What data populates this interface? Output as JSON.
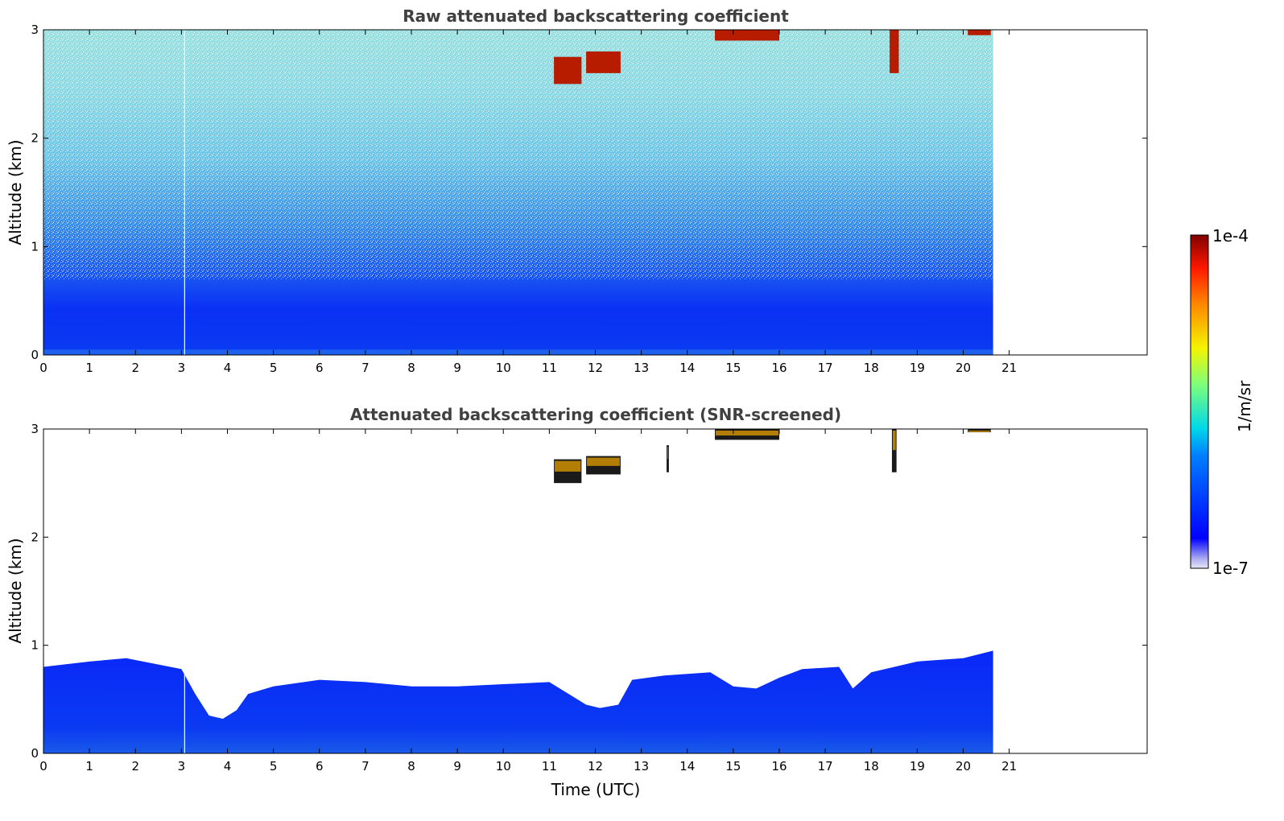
{
  "chart_data": [
    {
      "type": "heatmap",
      "title": "Raw attenuated backscattering coefficient",
      "xlabel": "",
      "ylabel": "Altitude (km)",
      "xlim": [
        0,
        24
      ],
      "ylim": [
        0,
        3
      ],
      "x_ticks": [
        0,
        1,
        2,
        3,
        4,
        5,
        6,
        7,
        8,
        9,
        10,
        11,
        12,
        13,
        14,
        15,
        16,
        17,
        18,
        19,
        20,
        21
      ],
      "x_tick_labels": [
        "0",
        "1",
        "2",
        "3",
        "4",
        "5",
        "6",
        "7",
        "8",
        "9",
        "10",
        "11",
        "12",
        "13",
        "14",
        "15",
        "16",
        "17",
        "18",
        "19",
        "20",
        "21"
      ],
      "y_ticks": [
        0,
        1,
        2,
        3
      ],
      "y_tick_labels": [
        "0",
        "1",
        "2",
        "3"
      ],
      "data_end_time": 20.65,
      "boundary_layer_top_km": 0.7,
      "clouds": [
        {
          "t_start": 11.1,
          "t_end": 11.7,
          "alt_low": 2.5,
          "alt_high": 2.75
        },
        {
          "t_start": 11.8,
          "t_end": 12.55,
          "alt_low": 2.6,
          "alt_high": 2.8
        },
        {
          "t_start": 14.6,
          "t_end": 16.0,
          "alt_low": 2.9,
          "alt_high": 3.0
        },
        {
          "t_start": 18.4,
          "t_end": 18.6,
          "alt_low": 2.6,
          "alt_high": 3.0
        },
        {
          "t_start": 20.1,
          "t_end": 20.6,
          "alt_low": 2.95,
          "alt_high": 3.0
        }
      ],
      "colorscale": "jet",
      "grid": false
    },
    {
      "type": "heatmap",
      "title": "Attenuated backscattering coefficient (SNR-screened)",
      "xlabel": "Time (UTC)",
      "ylabel": "Altitude (km)",
      "xlim": [
        0,
        24
      ],
      "ylim": [
        0,
        3
      ],
      "x_ticks": [
        0,
        1,
        2,
        3,
        4,
        5,
        6,
        7,
        8,
        9,
        10,
        11,
        12,
        13,
        14,
        15,
        16,
        17,
        18,
        19,
        20,
        21
      ],
      "x_tick_labels": [
        "0",
        "1",
        "2",
        "3",
        "4",
        "5",
        "6",
        "7",
        "8",
        "9",
        "10",
        "11",
        "12",
        "13",
        "14",
        "15",
        "16",
        "17",
        "18",
        "19",
        "20",
        "21"
      ],
      "y_ticks": [
        0,
        1,
        2,
        3
      ],
      "y_tick_labels": [
        "0",
        "1",
        "2",
        "3"
      ],
      "data_end_time": 20.65,
      "boundary_layer_top": {
        "time": [
          0,
          1,
          1.8,
          3.0,
          3.3,
          3.6,
          3.9,
          4.2,
          4.45,
          5,
          6,
          7,
          8,
          9,
          10,
          11,
          11.8,
          12.1,
          12.5,
          12.8,
          13.5,
          14.5,
          15,
          15.5,
          16,
          16.5,
          17.3,
          17.6,
          18,
          19,
          20,
          20.65
        ],
        "altitude_km": [
          0.8,
          0.85,
          0.88,
          0.78,
          0.55,
          0.35,
          0.32,
          0.4,
          0.55,
          0.62,
          0.68,
          0.66,
          0.62,
          0.62,
          0.64,
          0.66,
          0.45,
          0.42,
          0.45,
          0.68,
          0.72,
          0.75,
          0.62,
          0.6,
          0.7,
          0.78,
          0.8,
          0.6,
          0.75,
          0.85,
          0.88,
          0.95
        ]
      },
      "clouds": [
        {
          "t_start": 11.1,
          "t_end": 11.7,
          "alt_low": 2.5,
          "alt_high": 2.72
        },
        {
          "t_start": 11.8,
          "t_end": 12.55,
          "alt_low": 2.58,
          "alt_high": 2.75
        },
        {
          "t_start": 13.55,
          "t_end": 13.6,
          "alt_low": 2.6,
          "alt_high": 2.85
        },
        {
          "t_start": 14.6,
          "t_end": 16.0,
          "alt_low": 2.9,
          "alt_high": 3.0
        },
        {
          "t_start": 18.45,
          "t_end": 18.55,
          "alt_low": 2.6,
          "alt_high": 3.0
        },
        {
          "t_start": 20.1,
          "t_end": 20.6,
          "alt_low": 2.97,
          "alt_high": 3.0
        }
      ],
      "colorscale": "jet",
      "grid": false
    }
  ],
  "colorbar": {
    "label": "1/m/sr",
    "max_label": "1e-4",
    "min_label": "1e-7",
    "scale": "log",
    "range": [
      1e-07,
      0.0001
    ]
  }
}
